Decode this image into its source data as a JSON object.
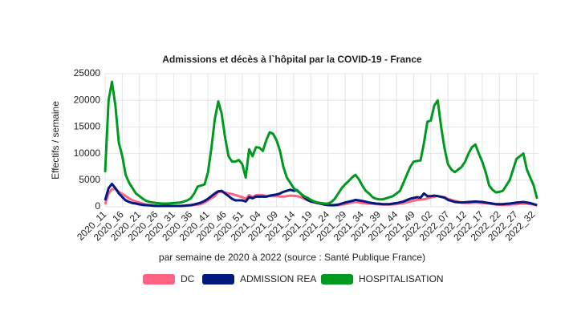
{
  "chart_data": {
    "type": "line",
    "title": "Admissions et décès à l`hôpital par la COVID-19 - France",
    "x_label": "par semaine de 2020 à 2022 (source : Santé Publique France)",
    "y_label": "Effectifs / semaine",
    "categories": [
      "2020_11",
      null,
      null,
      null,
      null,
      "2020_16",
      null,
      null,
      null,
      null,
      "2020_21",
      null,
      null,
      null,
      null,
      "2020_26",
      null,
      null,
      null,
      null,
      "2020_31",
      null,
      null,
      null,
      null,
      "2020_36",
      null,
      null,
      null,
      null,
      "2020_41",
      null,
      null,
      null,
      null,
      "2020_46",
      null,
      null,
      null,
      null,
      "2020_51",
      null,
      null,
      null,
      null,
      "2021_04",
      null,
      null,
      null,
      null,
      "2021_09",
      null,
      null,
      null,
      null,
      "2021_14",
      null,
      null,
      null,
      null,
      "2021_19",
      null,
      null,
      null,
      null,
      "2021_24",
      null,
      null,
      null,
      null,
      "2021_29",
      null,
      null,
      null,
      null,
      "2021_34",
      null,
      null,
      null,
      null,
      "2021_39",
      null,
      null,
      null,
      null,
      "2021_44",
      null,
      null,
      null,
      null,
      "2021_49",
      null,
      null,
      null,
      null,
      "2022_02",
      null,
      null,
      null,
      null,
      "2022_07",
      null,
      null,
      null,
      null,
      "2022_12",
      null,
      null,
      null,
      null,
      "2022_17",
      null,
      null,
      null,
      null,
      "2022_22",
      null,
      null,
      null,
      null,
      "2022_27",
      null,
      null,
      null,
      null,
      "2022_32",
      null
    ],
    "series": [
      {
        "name": "DC",
        "color": "#ff6384",
        "values": [
          500,
          2500,
          3300,
          3400,
          2800,
          2400,
          2000,
          1600,
          1200,
          1000,
          800,
          600,
          400,
          300,
          250,
          200,
          150,
          150,
          150,
          150,
          150,
          150,
          150,
          200,
          200,
          250,
          350,
          400,
          500,
          800,
          1200,
          1600,
          2000,
          2800,
          2800,
          2700,
          2500,
          2400,
          2200,
          2000,
          1800,
          1500,
          2200,
          1800,
          2200,
          2200,
          2200,
          2000,
          2000,
          2000,
          2000,
          1950,
          1900,
          2000,
          2100,
          2050,
          2000,
          1800,
          1500,
          1250,
          1000,
          850,
          700,
          550,
          400,
          300,
          250,
          250,
          300,
          400,
          500,
          650,
          800,
          900,
          800,
          700,
          650,
          600,
          550,
          500,
          450,
          400,
          400,
          400,
          450,
          500,
          600,
          700,
          850,
          1000,
          1150,
          1300,
          1350,
          1400,
          1600,
          1750,
          1900,
          2000,
          1900,
          1800,
          1500,
          1300,
          1100,
          950,
          800,
          750,
          700,
          750,
          800,
          750,
          700,
          650,
          600,
          500,
          400,
          380,
          350,
          380,
          400,
          450,
          500,
          550,
          600,
          550,
          500,
          400,
          300
        ]
      },
      {
        "name": "ADMISSION REA",
        "color": "#00197f",
        "values": [
          1200,
          3500,
          4300,
          3500,
          2500,
          1800,
          1200,
          900,
          700,
          600,
          450,
          350,
          300,
          250,
          200,
          150,
          150,
          150,
          150,
          150,
          150,
          150,
          150,
          200,
          250,
          300,
          450,
          600,
          800,
          1100,
          1500,
          2000,
          2500,
          2900,
          3000,
          2500,
          2000,
          1500,
          1200,
          1200,
          1200,
          1000,
          1800,
          1600,
          1900,
          1900,
          1900,
          1900,
          2100,
          2200,
          2300,
          2500,
          2800,
          3000,
          3200,
          3000,
          3100,
          2500,
          1800,
          1300,
          1000,
          850,
          700,
          550,
          400,
          350,
          300,
          350,
          400,
          600,
          800,
          950,
          1100,
          1300,
          1200,
          1100,
          950,
          800,
          700,
          600,
          550,
          500,
          500,
          500,
          600,
          700,
          850,
          1000,
          1250,
          1500,
          1650,
          1800,
          1700,
          2500,
          2000,
          2000,
          2100,
          2000,
          1850,
          1700,
          1300,
          1100,
          900,
          850,
          800,
          850,
          900,
          950,
          1000,
          950,
          900,
          800,
          700,
          600,
          500,
          500,
          500,
          550,
          600,
          700,
          800,
          850,
          900,
          800,
          700,
          500,
          300
        ]
      },
      {
        "name": "HOSPITALISATION",
        "color": "#00991f",
        "values": [
          6500,
          20000,
          23500,
          19000,
          12000,
          9500,
          6000,
          4500,
          3500,
          2500,
          2000,
          1500,
          1100,
          900,
          800,
          700,
          650,
          600,
          600,
          650,
          700,
          750,
          800,
          1000,
          1200,
          1600,
          2500,
          3800,
          4000,
          4200,
          6500,
          11000,
          16500,
          19800,
          17500,
          13000,
          9500,
          8500,
          8500,
          8800,
          8000,
          5500,
          10800,
          9500,
          11200,
          11100,
          10500,
          12500,
          14000,
          13700,
          12500,
          10500,
          7500,
          5500,
          4500,
          3500,
          3000,
          2500,
          2000,
          1700,
          1300,
          1000,
          800,
          700,
          600,
          600,
          900,
          1500,
          2500,
          3500,
          4200,
          4800,
          5500,
          6000,
          5200,
          4000,
          3000,
          2500,
          1800,
          1500,
          1400,
          1400,
          1600,
          1800,
          2000,
          2500,
          3000,
          4500,
          6000,
          7500,
          8500,
          8600,
          8700,
          12000,
          16000,
          16200,
          19000,
          20000,
          15000,
          11000,
          8000,
          7000,
          6500,
          7000,
          7500,
          8500,
          10000,
          11200,
          11700,
          10000,
          8500,
          6500,
          4000,
          3200,
          2700,
          2800,
          3000,
          4000,
          5000,
          7000,
          9000,
          9500,
          10000,
          7000,
          5500,
          4000,
          1500
        ]
      }
    ],
    "ylim": [
      0,
      25000
    ],
    "yticks": [
      0,
      5000,
      10000,
      15000,
      20000,
      25000
    ],
    "grid": true,
    "legend": "bottom"
  }
}
